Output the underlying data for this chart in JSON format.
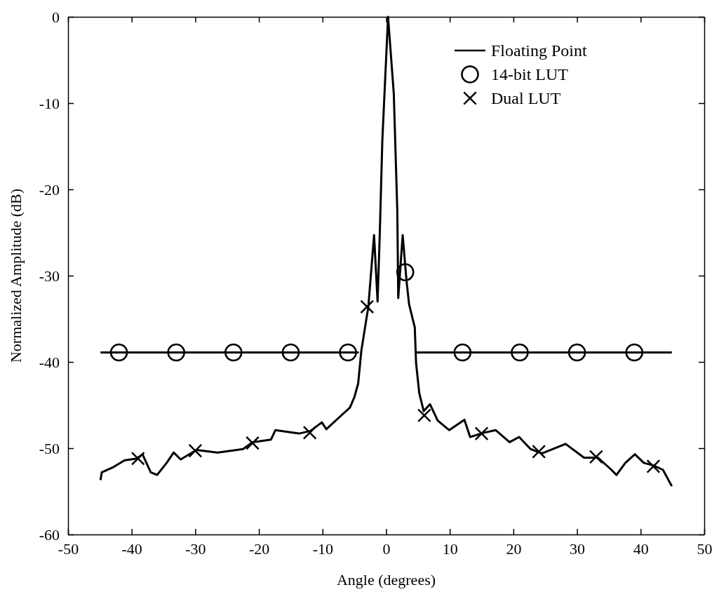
{
  "chart_data": {
    "type": "line",
    "xlabel": "Angle (degrees)",
    "ylabel": "Normalized Amplitude (dB)",
    "xlim": [
      -50,
      50
    ],
    "xticks": [
      -50,
      -40,
      -30,
      -20,
      -10,
      0,
      10,
      20,
      30,
      40,
      50
    ],
    "ylim": [
      -60,
      0
    ],
    "yticks": [
      -60,
      -50,
      -40,
      -30,
      -20,
      -10,
      0
    ],
    "grid": false,
    "legend": "top right",
    "series": [
      {
        "name": "Floating Point",
        "color": "#000000",
        "marker": "none",
        "x": [
          -44.9,
          -44.7,
          -42.9,
          -41.1,
          -39.2,
          -38.3,
          -37.0,
          -36.0,
          -34.5,
          -33.4,
          -32.3,
          -29.8,
          -26.5,
          -22.5,
          -21.0,
          -18.1,
          -17.4,
          -13.7,
          -11.9,
          -10.1,
          -9.4,
          -7.2,
          -5.7,
          -5.0,
          -4.4,
          -3.9,
          -2.8,
          -1.9,
          -1.35,
          -1.0,
          -0.6,
          0.3,
          1.2,
          1.75,
          1.9,
          2.6,
          3.2,
          3.6,
          4.5,
          4.7,
          5.2,
          5.9,
          6.9,
          8.1,
          9.9,
          12.3,
          13.2,
          15.4,
          17.2,
          19.4,
          20.9,
          22.7,
          24.5,
          28.2,
          31.1,
          33.3,
          35.4,
          36.2,
          37.6,
          39.1,
          40.5,
          42.0,
          43.5,
          44.9
        ],
        "values": [
          -53.7,
          -52.8,
          -52.2,
          -51.4,
          -51.2,
          -50.7,
          -52.8,
          -53.1,
          -51.7,
          -50.5,
          -51.3,
          -50.2,
          -50.5,
          -50.1,
          -49.3,
          -49.0,
          -47.9,
          -48.3,
          -48.0,
          -47.0,
          -47.8,
          -46.3,
          -45.3,
          -44.1,
          -42.5,
          -38.7,
          -33.6,
          -25.3,
          -33.0,
          -25.1,
          -14.3,
          0,
          -8.9,
          -22.4,
          -32.6,
          -25.3,
          -30.6,
          -33.3,
          -36.0,
          -40.1,
          -43.6,
          -45.7,
          -44.9,
          -46.8,
          -47.9,
          -46.7,
          -48.7,
          -48.2,
          -47.9,
          -49.3,
          -48.7,
          -50.1,
          -50.6,
          -49.5,
          -51.1,
          -51.1,
          -52.5,
          -53.1,
          -51.7,
          -50.7,
          -51.7,
          -52.0,
          -52.5,
          -54.4
        ]
      },
      {
        "type": "line",
        "color": "#000000",
        "marker": "none",
        "x": [
          -44.9,
          -4.3,
          0,
          4.6,
          44.9
        ],
        "values": [
          -38.9,
          -38.9,
          null,
          -38.9,
          -38.9
        ]
      },
      {
        "name": "14-bit LUT",
        "type": "scatter",
        "color": "#000000",
        "marker": "circle",
        "x": [
          -42,
          -33,
          -24,
          -15,
          -6,
          3,
          12,
          21,
          30,
          39
        ],
        "values": [
          -38.9,
          -38.9,
          -38.9,
          -38.9,
          -38.9,
          -29.6,
          -38.9,
          -38.9,
          -38.9,
          -38.9
        ]
      },
      {
        "name": "Dual LUT",
        "type": "scatter",
        "color": "#000000",
        "marker": "cross",
        "x": [
          -39,
          -30,
          -21,
          -12,
          -3,
          6,
          15,
          24,
          33,
          42
        ],
        "values": [
          -51.2,
          -50.3,
          -49.4,
          -48.2,
          -33.6,
          -46.2,
          -48.3,
          -50.4,
          -51.0,
          -52.1
        ]
      }
    ]
  }
}
